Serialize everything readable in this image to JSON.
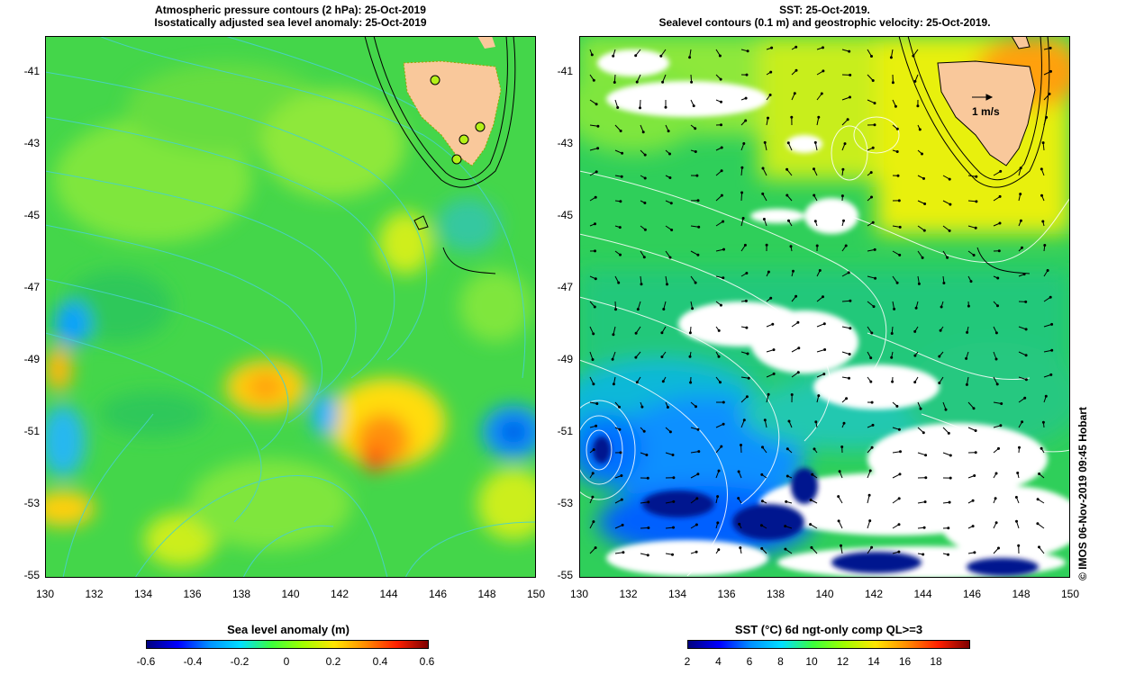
{
  "left_panel": {
    "title_line1": "Atmospheric pressure contours (2 hPa): 25-Oct-2019",
    "title_line2": "Isostatically adjusted sea level anomaly: 25-Oct-2019",
    "colorbar": {
      "title": "Sea level anomaly (m)",
      "ticks": [
        "-0.6",
        "-0.4",
        "-0.2",
        "0",
        "0.2",
        "0.4",
        "0.6"
      ]
    }
  },
  "right_panel": {
    "title_line1": "SST: 25-Oct-2019.",
    "title_line2": "Sealevel contours (0.1 m) and geostrophic velocity: 25-Oct-2019.",
    "velocity_scale_label": "1 m/s",
    "colorbar": {
      "title": "SST (°C) 6d ngt-only comp QL>=3",
      "ticks": [
        "2",
        "4",
        "6",
        "8",
        "10",
        "12",
        "14",
        "16",
        "18"
      ]
    }
  },
  "axes": {
    "lat_ticks": [
      "-41",
      "-43",
      "-45",
      "-47",
      "-49",
      "-51",
      "-53",
      "-55"
    ],
    "lon_ticks": [
      "130",
      "132",
      "134",
      "136",
      "138",
      "140",
      "142",
      "144",
      "146",
      "148",
      "150"
    ]
  },
  "credit": "© IMOS 06-Nov-2019 09:45 Hobart",
  "colors": {
    "land": "#f9c89b",
    "slp_contour": "#48d1cc",
    "sla_colormap": [
      "#00007f",
      "#0000ff",
      "#0090ff",
      "#00dfff",
      "#3cff3c",
      "#a0ff00",
      "#ffe600",
      "#ff8c00",
      "#ff2000",
      "#7f0000"
    ],
    "sst_colormap": [
      "#00007f",
      "#0000ff",
      "#0090ff",
      "#00dfff",
      "#3cff3c",
      "#a0ff00",
      "#ffe600",
      "#ff8c00",
      "#ff2000",
      "#7f0000"
    ]
  }
}
